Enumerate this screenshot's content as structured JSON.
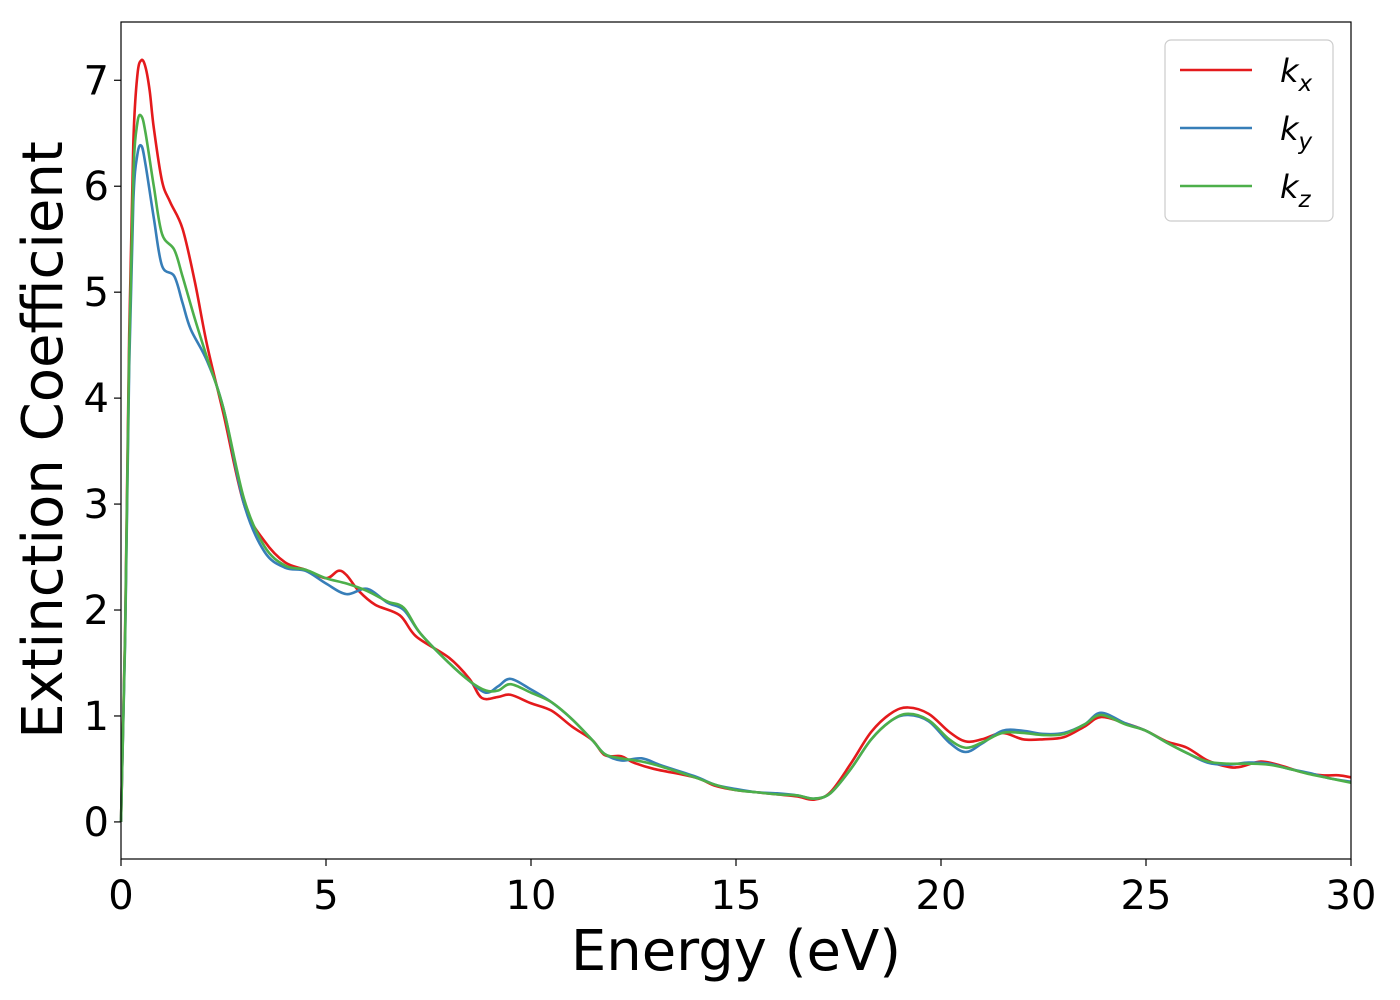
{
  "chart_data": {
    "type": "line",
    "title": "",
    "xlabel": "Energy (eV)",
    "ylabel": "Extinction Coefficient",
    "xlim": [
      0,
      30
    ],
    "ylim": [
      -0.35,
      7.55
    ],
    "xticks": [
      0,
      5,
      10,
      15,
      20,
      25,
      30
    ],
    "yticks": [
      0,
      1,
      2,
      3,
      4,
      5,
      6,
      7
    ],
    "grid": false,
    "legend_position": "top-right",
    "series": [
      {
        "name": "k_x",
        "label_main": "k",
        "label_sub": "x",
        "color": "#e41a1c",
        "points": [
          [
            0,
            0
          ],
          [
            0.1,
            1.8
          ],
          [
            0.2,
            4.6
          ],
          [
            0.3,
            6.4
          ],
          [
            0.4,
            7.05
          ],
          [
            0.5,
            7.19
          ],
          [
            0.6,
            7.12
          ],
          [
            0.7,
            6.9
          ],
          [
            0.8,
            6.55
          ],
          [
            1.0,
            6.05
          ],
          [
            1.2,
            5.85
          ],
          [
            1.5,
            5.6
          ],
          [
            1.8,
            5.1
          ],
          [
            2.1,
            4.5
          ],
          [
            2.5,
            3.85
          ],
          [
            3.0,
            3.0
          ],
          [
            3.5,
            2.65
          ],
          [
            4.0,
            2.45
          ],
          [
            4.5,
            2.38
          ],
          [
            5.0,
            2.3
          ],
          [
            5.3,
            2.37
          ],
          [
            5.5,
            2.33
          ],
          [
            5.8,
            2.18
          ],
          [
            6.2,
            2.05
          ],
          [
            6.8,
            1.95
          ],
          [
            7.2,
            1.75
          ],
          [
            8.0,
            1.55
          ],
          [
            8.5,
            1.35
          ],
          [
            8.8,
            1.17
          ],
          [
            9.2,
            1.18
          ],
          [
            9.5,
            1.2
          ],
          [
            10.0,
            1.12
          ],
          [
            10.5,
            1.05
          ],
          [
            11.0,
            0.9
          ],
          [
            11.5,
            0.77
          ],
          [
            11.8,
            0.63
          ],
          [
            12.2,
            0.62
          ],
          [
            12.5,
            0.56
          ],
          [
            13.0,
            0.5
          ],
          [
            14.0,
            0.42
          ],
          [
            14.5,
            0.34
          ],
          [
            15.0,
            0.3
          ],
          [
            15.5,
            0.28
          ],
          [
            16.0,
            0.26
          ],
          [
            16.5,
            0.24
          ],
          [
            16.9,
            0.21
          ],
          [
            17.3,
            0.28
          ],
          [
            17.8,
            0.55
          ],
          [
            18.3,
            0.85
          ],
          [
            18.8,
            1.03
          ],
          [
            19.2,
            1.08
          ],
          [
            19.7,
            1.02
          ],
          [
            20.2,
            0.85
          ],
          [
            20.6,
            0.76
          ],
          [
            21.0,
            0.78
          ],
          [
            21.5,
            0.84
          ],
          [
            22.0,
            0.78
          ],
          [
            22.5,
            0.78
          ],
          [
            23.0,
            0.8
          ],
          [
            23.5,
            0.9
          ],
          [
            23.9,
            0.99
          ],
          [
            24.5,
            0.93
          ],
          [
            25.0,
            0.86
          ],
          [
            25.5,
            0.76
          ],
          [
            26.0,
            0.7
          ],
          [
            26.5,
            0.58
          ],
          [
            27.0,
            0.52
          ],
          [
            27.3,
            0.52
          ],
          [
            27.8,
            0.57
          ],
          [
            28.3,
            0.53
          ],
          [
            28.8,
            0.47
          ],
          [
            29.3,
            0.44
          ],
          [
            29.7,
            0.44
          ],
          [
            30.0,
            0.42
          ]
        ]
      },
      {
        "name": "k_y",
        "label_main": "k",
        "label_sub": "y",
        "color": "#377eb8",
        "points": [
          [
            0,
            0
          ],
          [
            0.1,
            1.7
          ],
          [
            0.2,
            4.3
          ],
          [
            0.3,
            5.85
          ],
          [
            0.4,
            6.3
          ],
          [
            0.5,
            6.38
          ],
          [
            0.6,
            6.2
          ],
          [
            0.8,
            5.7
          ],
          [
            1.0,
            5.25
          ],
          [
            1.3,
            5.15
          ],
          [
            1.5,
            4.9
          ],
          [
            1.7,
            4.65
          ],
          [
            2.1,
            4.35
          ],
          [
            2.5,
            3.9
          ],
          [
            3.0,
            3.0
          ],
          [
            3.5,
            2.55
          ],
          [
            4.0,
            2.4
          ],
          [
            4.5,
            2.37
          ],
          [
            5.0,
            2.25
          ],
          [
            5.5,
            2.15
          ],
          [
            6.0,
            2.2
          ],
          [
            6.5,
            2.07
          ],
          [
            6.9,
            2.0
          ],
          [
            7.3,
            1.78
          ],
          [
            8.0,
            1.5
          ],
          [
            8.5,
            1.33
          ],
          [
            8.9,
            1.22
          ],
          [
            9.2,
            1.28
          ],
          [
            9.5,
            1.35
          ],
          [
            10.0,
            1.25
          ],
          [
            10.5,
            1.13
          ],
          [
            11.0,
            0.97
          ],
          [
            11.5,
            0.77
          ],
          [
            11.8,
            0.64
          ],
          [
            12.2,
            0.58
          ],
          [
            12.7,
            0.6
          ],
          [
            13.2,
            0.53
          ],
          [
            14.0,
            0.43
          ],
          [
            14.5,
            0.35
          ],
          [
            15.0,
            0.31
          ],
          [
            15.5,
            0.28
          ],
          [
            16.0,
            0.27
          ],
          [
            16.5,
            0.25
          ],
          [
            16.9,
            0.22
          ],
          [
            17.3,
            0.27
          ],
          [
            17.8,
            0.5
          ],
          [
            18.3,
            0.78
          ],
          [
            18.8,
            0.96
          ],
          [
            19.2,
            1.01
          ],
          [
            19.7,
            0.95
          ],
          [
            20.2,
            0.75
          ],
          [
            20.6,
            0.66
          ],
          [
            21.0,
            0.74
          ],
          [
            21.5,
            0.86
          ],
          [
            22.0,
            0.86
          ],
          [
            22.5,
            0.83
          ],
          [
            23.0,
            0.84
          ],
          [
            23.5,
            0.92
          ],
          [
            23.9,
            1.03
          ],
          [
            24.5,
            0.93
          ],
          [
            25.0,
            0.86
          ],
          [
            25.5,
            0.75
          ],
          [
            26.0,
            0.65
          ],
          [
            26.5,
            0.56
          ],
          [
            27.0,
            0.54
          ],
          [
            27.5,
            0.56
          ],
          [
            28.0,
            0.55
          ],
          [
            28.5,
            0.5
          ],
          [
            29.0,
            0.46
          ],
          [
            29.5,
            0.41
          ],
          [
            30.0,
            0.38
          ]
        ]
      },
      {
        "name": "k_z",
        "label_main": "k",
        "label_sub": "z",
        "color": "#4daf4a",
        "points": [
          [
            0,
            0
          ],
          [
            0.1,
            1.75
          ],
          [
            0.2,
            4.45
          ],
          [
            0.3,
            6.1
          ],
          [
            0.4,
            6.6
          ],
          [
            0.5,
            6.66
          ],
          [
            0.6,
            6.5
          ],
          [
            0.8,
            6.0
          ],
          [
            1.0,
            5.55
          ],
          [
            1.3,
            5.4
          ],
          [
            1.5,
            5.15
          ],
          [
            1.8,
            4.75
          ],
          [
            2.1,
            4.38
          ],
          [
            2.5,
            3.9
          ],
          [
            3.0,
            3.05
          ],
          [
            3.5,
            2.6
          ],
          [
            4.0,
            2.42
          ],
          [
            4.5,
            2.38
          ],
          [
            5.0,
            2.3
          ],
          [
            5.5,
            2.25
          ],
          [
            6.0,
            2.18
          ],
          [
            6.5,
            2.08
          ],
          [
            6.9,
            2.02
          ],
          [
            7.3,
            1.78
          ],
          [
            8.0,
            1.5
          ],
          [
            8.5,
            1.33
          ],
          [
            8.9,
            1.24
          ],
          [
            9.2,
            1.24
          ],
          [
            9.5,
            1.3
          ],
          [
            10.0,
            1.22
          ],
          [
            10.5,
            1.13
          ],
          [
            11.0,
            0.97
          ],
          [
            11.5,
            0.77
          ],
          [
            11.8,
            0.64
          ],
          [
            12.2,
            0.6
          ],
          [
            12.7,
            0.57
          ],
          [
            13.2,
            0.52
          ],
          [
            14.0,
            0.42
          ],
          [
            14.5,
            0.35
          ],
          [
            15.0,
            0.3
          ],
          [
            15.5,
            0.28
          ],
          [
            16.0,
            0.26
          ],
          [
            16.5,
            0.25
          ],
          [
            16.9,
            0.22
          ],
          [
            17.3,
            0.27
          ],
          [
            17.8,
            0.5
          ],
          [
            18.3,
            0.78
          ],
          [
            18.8,
            0.96
          ],
          [
            19.2,
            1.02
          ],
          [
            19.7,
            0.96
          ],
          [
            20.2,
            0.78
          ],
          [
            20.6,
            0.7
          ],
          [
            21.0,
            0.75
          ],
          [
            21.5,
            0.84
          ],
          [
            22.0,
            0.84
          ],
          [
            22.5,
            0.82
          ],
          [
            23.0,
            0.83
          ],
          [
            23.5,
            0.92
          ],
          [
            23.9,
            1.01
          ],
          [
            24.5,
            0.92
          ],
          [
            25.0,
            0.86
          ],
          [
            25.5,
            0.75
          ],
          [
            26.0,
            0.65
          ],
          [
            26.5,
            0.57
          ],
          [
            27.0,
            0.55
          ],
          [
            27.5,
            0.55
          ],
          [
            28.0,
            0.54
          ],
          [
            28.5,
            0.5
          ],
          [
            29.0,
            0.45
          ],
          [
            29.5,
            0.41
          ],
          [
            30.0,
            0.37
          ]
        ]
      }
    ]
  }
}
